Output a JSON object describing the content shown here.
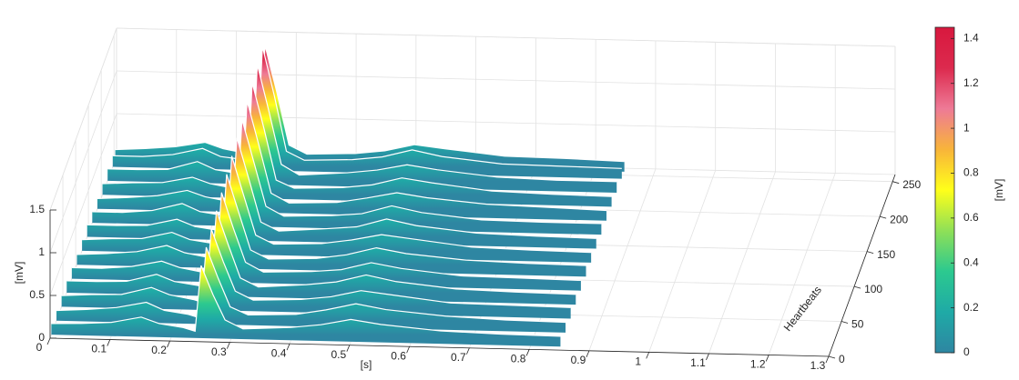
{
  "chart_data": {
    "type": "waterfall3d",
    "x_label": "[s]",
    "y_label": "Heartbeats",
    "z_label": "[mV]",
    "colorbar_label": "[mV]",
    "xlim": [
      0,
      1.3
    ],
    "xticks": [
      0,
      0.1,
      0.2,
      0.3,
      0.4,
      0.5,
      0.6,
      0.7,
      0.8,
      0.9,
      1,
      1.1,
      1.2,
      1.3
    ],
    "ylim": [
      0,
      260
    ],
    "yticks": [
      0,
      50,
      100,
      150,
      200,
      250
    ],
    "zlim": [
      0,
      1.5
    ],
    "zticks": [
      0,
      0.5,
      1,
      1.5
    ],
    "clim": [
      0,
      1.45
    ],
    "cticks": [
      0,
      0.2,
      0.4,
      0.6,
      0.8,
      1,
      1.2,
      1.4
    ],
    "colormap": [
      "#2e86a2",
      "#1faaa6",
      "#2cc98f",
      "#8fe057",
      "#ffff1a",
      "#f8b43a",
      "#ee7a96",
      "#dc2a4e",
      "#d8183e"
    ],
    "grid": true,
    "x": [
      0,
      0.05,
      0.1,
      0.15,
      0.18,
      0.22,
      0.24,
      0.25,
      0.27,
      0.29,
      0.32,
      0.4,
      0.45,
      0.5,
      0.55,
      0.65,
      0.75,
      0.85
    ],
    "series": [
      {
        "y": 5,
        "values": [
          0.13,
          0.14,
          0.16,
          0.23,
          0.16,
          0.12,
          0.08,
          0.85,
          0.51,
          0.22,
          0.12,
          0.15,
          0.19,
          0.26,
          0.21,
          0.15,
          0.13,
          0.12
        ]
      },
      {
        "y": 25,
        "values": [
          0.12,
          0.14,
          0.17,
          0.24,
          0.15,
          0.11,
          0.07,
          0.9,
          0.54,
          0.21,
          0.12,
          0.14,
          0.2,
          0.28,
          0.22,
          0.16,
          0.13,
          0.12
        ]
      },
      {
        "y": 45,
        "values": [
          0.13,
          0.15,
          0.16,
          0.25,
          0.17,
          0.12,
          0.08,
          0.95,
          0.57,
          0.23,
          0.13,
          0.15,
          0.19,
          0.27,
          0.23,
          0.15,
          0.14,
          0.13
        ]
      },
      {
        "y": 65,
        "values": [
          0.14,
          0.14,
          0.15,
          0.24,
          0.16,
          0.12,
          0.07,
          1.0,
          0.6,
          0.22,
          0.12,
          0.16,
          0.2,
          0.29,
          0.22,
          0.15,
          0.13,
          0.12
        ]
      },
      {
        "y": 85,
        "values": [
          0.13,
          0.13,
          0.16,
          0.23,
          0.16,
          0.11,
          0.08,
          1.05,
          0.63,
          0.24,
          0.13,
          0.15,
          0.18,
          0.27,
          0.21,
          0.14,
          0.13,
          0.12
        ]
      },
      {
        "y": 105,
        "values": [
          0.12,
          0.14,
          0.17,
          0.25,
          0.17,
          0.12,
          0.07,
          1.1,
          0.66,
          0.22,
          0.12,
          0.14,
          0.19,
          0.28,
          0.22,
          0.16,
          0.14,
          0.13
        ]
      },
      {
        "y": 125,
        "values": [
          0.13,
          0.15,
          0.16,
          0.24,
          0.16,
          0.12,
          0.08,
          1.15,
          0.69,
          0.23,
          0.13,
          0.15,
          0.2,
          0.27,
          0.23,
          0.15,
          0.13,
          0.12
        ]
      },
      {
        "y": 145,
        "values": [
          0.14,
          0.14,
          0.15,
          0.23,
          0.15,
          0.11,
          0.07,
          1.2,
          0.72,
          0.22,
          0.12,
          0.16,
          0.19,
          0.29,
          0.22,
          0.15,
          0.13,
          0.12
        ]
      },
      {
        "y": 165,
        "values": [
          0.13,
          0.13,
          0.16,
          0.25,
          0.16,
          0.12,
          0.08,
          1.25,
          0.75,
          0.24,
          0.13,
          0.15,
          0.18,
          0.28,
          0.21,
          0.14,
          0.13,
          0.13
        ]
      },
      {
        "y": 185,
        "values": [
          0.12,
          0.14,
          0.17,
          0.24,
          0.17,
          0.12,
          0.07,
          1.3,
          0.78,
          0.23,
          0.12,
          0.14,
          0.2,
          0.27,
          0.22,
          0.16,
          0.14,
          0.12
        ]
      },
      {
        "y": 205,
        "values": [
          0.13,
          0.15,
          0.16,
          0.23,
          0.16,
          0.11,
          0.08,
          1.35,
          0.81,
          0.22,
          0.13,
          0.15,
          0.19,
          0.28,
          0.23,
          0.15,
          0.13,
          0.12
        ]
      },
      {
        "y": 225,
        "values": [
          0.14,
          0.14,
          0.15,
          0.25,
          0.16,
          0.12,
          0.07,
          1.4,
          0.84,
          0.24,
          0.12,
          0.16,
          0.2,
          0.27,
          0.22,
          0.15,
          0.13,
          0.13
        ]
      },
      {
        "y": 245,
        "values": [
          0.13,
          0.13,
          0.16,
          0.24,
          0.15,
          0.12,
          0.08,
          1.45,
          0.87,
          0.23,
          0.13,
          0.15,
          0.19,
          0.28,
          0.21,
          0.14,
          0.13,
          0.12
        ]
      },
      {
        "y": 255,
        "values": [
          0.12,
          0.14,
          0.17,
          0.23,
          0.16,
          0.11,
          0.07,
          1.38,
          0.83,
          0.22,
          0.12,
          0.14,
          0.18,
          0.26,
          0.22,
          0.15,
          0.14,
          0.12
        ]
      }
    ]
  }
}
